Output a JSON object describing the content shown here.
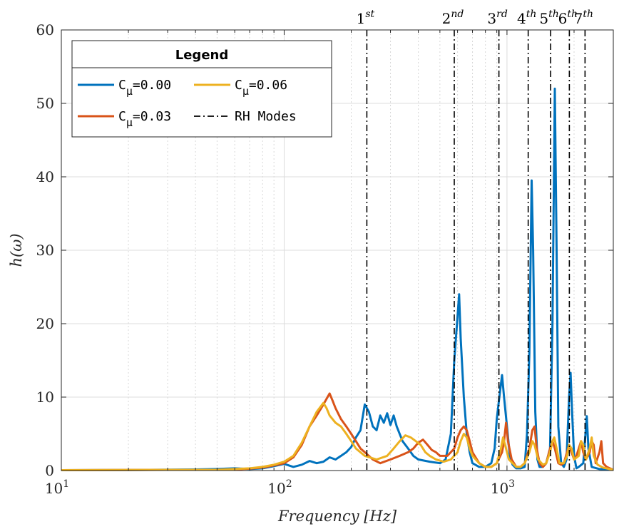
{
  "chart_data": {
    "type": "line",
    "xscale": "log",
    "xlim": [
      10,
      3000
    ],
    "ylim": [
      0,
      60
    ],
    "grid": true,
    "xlabel": "Frequency [Hz]",
    "ylabel": "h(ω)",
    "xticks": [
      {
        "value": 10,
        "base": "10",
        "exp": "1"
      },
      {
        "value": 100,
        "base": "10",
        "exp": "2"
      },
      {
        "value": 1000,
        "base": "10",
        "exp": "3"
      }
    ],
    "yticks": [
      {
        "value": 0,
        "label": "0"
      },
      {
        "value": 10,
        "label": "10"
      },
      {
        "value": 20,
        "label": "20"
      },
      {
        "value": 30,
        "label": "30"
      },
      {
        "value": 40,
        "label": "40"
      },
      {
        "value": 50,
        "label": "50"
      },
      {
        "value": 60,
        "label": "60"
      }
    ],
    "legend": {
      "title": "Legend",
      "position": "top-left",
      "mode_entry": "RH Modes"
    },
    "series": [
      {
        "name": "C_μ=0.00",
        "legend_label": {
          "main": "C",
          "sub": "μ",
          "rest": "=0.00"
        },
        "color": "#0072BD",
        "points": [
          [
            10,
            0.05
          ],
          [
            20,
            0.08
          ],
          [
            40,
            0.15
          ],
          [
            50,
            0.2
          ],
          [
            60,
            0.3
          ],
          [
            70,
            0.2
          ],
          [
            80,
            0.3
          ],
          [
            90,
            0.6
          ],
          [
            100,
            0.9
          ],
          [
            110,
            0.5
          ],
          [
            120,
            0.8
          ],
          [
            130,
            1.3
          ],
          [
            140,
            1.0
          ],
          [
            150,
            1.2
          ],
          [
            160,
            1.8
          ],
          [
            170,
            1.5
          ],
          [
            180,
            2.0
          ],
          [
            190,
            2.5
          ],
          [
            200,
            3.2
          ],
          [
            210,
            4.5
          ],
          [
            220,
            5.5
          ],
          [
            230,
            9.0
          ],
          [
            240,
            8.0
          ],
          [
            250,
            6.0
          ],
          [
            260,
            5.5
          ],
          [
            270,
            7.5
          ],
          [
            280,
            6.5
          ],
          [
            290,
            7.8
          ],
          [
            300,
            6.2
          ],
          [
            310,
            7.5
          ],
          [
            320,
            6.0
          ],
          [
            340,
            4.0
          ],
          [
            360,
            3.0
          ],
          [
            380,
            2.0
          ],
          [
            400,
            1.5
          ],
          [
            450,
            1.2
          ],
          [
            500,
            1.0
          ],
          [
            530,
            1.5
          ],
          [
            560,
            5.0
          ],
          [
            580,
            15.0
          ],
          [
            600,
            21.0
          ],
          [
            610,
            24.0
          ],
          [
            620,
            18.0
          ],
          [
            640,
            10.0
          ],
          [
            660,
            5.0
          ],
          [
            680,
            2.5
          ],
          [
            700,
            1.0
          ],
          [
            750,
            0.5
          ],
          [
            800,
            0.5
          ],
          [
            850,
            1.0
          ],
          [
            880,
            3.0
          ],
          [
            900,
            7.0
          ],
          [
            920,
            9.5
          ],
          [
            950,
            13.0
          ],
          [
            970,
            10.0
          ],
          [
            1000,
            6.0
          ],
          [
            1030,
            2.0
          ],
          [
            1060,
            0.8
          ],
          [
            1100,
            0.3
          ],
          [
            1150,
            0.3
          ],
          [
            1200,
            0.5
          ],
          [
            1230,
            5.0
          ],
          [
            1260,
            16.0
          ],
          [
            1290,
            39.5
          ],
          [
            1310,
            30.0
          ],
          [
            1340,
            8.0
          ],
          [
            1370,
            1.5
          ],
          [
            1400,
            0.5
          ],
          [
            1450,
            0.5
          ],
          [
            1500,
            1.0
          ],
          [
            1560,
            3.0
          ],
          [
            1600,
            20.0
          ],
          [
            1640,
            52.0
          ],
          [
            1670,
            30.0
          ],
          [
            1700,
            6.0
          ],
          [
            1750,
            1.0
          ],
          [
            1800,
            0.5
          ],
          [
            1850,
            1.5
          ],
          [
            1900,
            10.0
          ],
          [
            1930,
            13.3
          ],
          [
            1960,
            8.0
          ],
          [
            2000,
            2.0
          ],
          [
            2050,
            0.3
          ],
          [
            2100,
            0.5
          ],
          [
            2200,
            1.0
          ],
          [
            2250,
            5.0
          ],
          [
            2280,
            7.4
          ],
          [
            2320,
            3.0
          ],
          [
            2400,
            0.5
          ],
          [
            2600,
            0.2
          ],
          [
            3000,
            0.1
          ]
        ]
      },
      {
        "name": "C_μ=0.03",
        "legend_label": {
          "main": "C",
          "sub": "μ",
          "rest": "=0.03"
        },
        "color": "#D95319",
        "points": [
          [
            10,
            0.05
          ],
          [
            30,
            0.1
          ],
          [
            50,
            0.1
          ],
          [
            60,
            0.15
          ],
          [
            70,
            0.25
          ],
          [
            80,
            0.4
          ],
          [
            90,
            0.7
          ],
          [
            100,
            1.0
          ],
          [
            110,
            1.8
          ],
          [
            120,
            3.5
          ],
          [
            130,
            6.0
          ],
          [
            140,
            7.5
          ],
          [
            150,
            9.0
          ],
          [
            160,
            10.5
          ],
          [
            165,
            9.5
          ],
          [
            170,
            8.5
          ],
          [
            180,
            7.0
          ],
          [
            190,
            6.0
          ],
          [
            200,
            5.0
          ],
          [
            210,
            4.0
          ],
          [
            220,
            3.0
          ],
          [
            230,
            2.5
          ],
          [
            250,
            1.5
          ],
          [
            270,
            1.0
          ],
          [
            300,
            1.5
          ],
          [
            330,
            2.0
          ],
          [
            360,
            2.5
          ],
          [
            380,
            3.0
          ],
          [
            400,
            3.8
          ],
          [
            420,
            4.2
          ],
          [
            440,
            3.5
          ],
          [
            460,
            2.8
          ],
          [
            480,
            2.5
          ],
          [
            500,
            2.0
          ],
          [
            540,
            2.0
          ],
          [
            580,
            3.0
          ],
          [
            600,
            4.5
          ],
          [
            620,
            5.5
          ],
          [
            640,
            6.0
          ],
          [
            660,
            5.5
          ],
          [
            680,
            4.0
          ],
          [
            700,
            2.5
          ],
          [
            750,
            1.0
          ],
          [
            800,
            0.5
          ],
          [
            850,
            0.5
          ],
          [
            900,
            1.0
          ],
          [
            950,
            2.5
          ],
          [
            970,
            4.0
          ],
          [
            990,
            6.5
          ],
          [
            1010,
            4.0
          ],
          [
            1050,
            1.5
          ],
          [
            1100,
            0.5
          ],
          [
            1150,
            0.5
          ],
          [
            1200,
            1.0
          ],
          [
            1260,
            3.0
          ],
          [
            1300,
            5.5
          ],
          [
            1330,
            6.0
          ],
          [
            1360,
            3.0
          ],
          [
            1400,
            1.0
          ],
          [
            1450,
            0.5
          ],
          [
            1500,
            1.0
          ],
          [
            1560,
            3.0
          ],
          [
            1600,
            4.0
          ],
          [
            1640,
            3.0
          ],
          [
            1700,
            1.0
          ],
          [
            1750,
            0.8
          ],
          [
            1800,
            1.0
          ],
          [
            1860,
            2.5
          ],
          [
            1900,
            3.5
          ],
          [
            1950,
            2.5
          ],
          [
            2000,
            1.5
          ],
          [
            2050,
            2.0
          ],
          [
            2100,
            3.0
          ],
          [
            2150,
            4.0
          ],
          [
            2200,
            2.5
          ],
          [
            2260,
            1.5
          ],
          [
            2350,
            2.5
          ],
          [
            2400,
            4.0
          ],
          [
            2450,
            3.5
          ],
          [
            2500,
            1.0
          ],
          [
            2600,
            2.5
          ],
          [
            2650,
            4.0
          ],
          [
            2700,
            1.0
          ],
          [
            2800,
            0.5
          ],
          [
            3000,
            0.1
          ]
        ]
      },
      {
        "name": "C_μ=0.06",
        "legend_label": {
          "main": "C",
          "sub": "μ",
          "rest": "=0.06"
        },
        "color": "#EDB120",
        "points": [
          [
            10,
            0.05
          ],
          [
            30,
            0.1
          ],
          [
            50,
            0.1
          ],
          [
            60,
            0.2
          ],
          [
            70,
            0.3
          ],
          [
            80,
            0.5
          ],
          [
            90,
            0.8
          ],
          [
            100,
            1.2
          ],
          [
            110,
            2.0
          ],
          [
            120,
            3.8
          ],
          [
            130,
            6.0
          ],
          [
            140,
            8.0
          ],
          [
            150,
            9.2
          ],
          [
            155,
            8.5
          ],
          [
            160,
            7.5
          ],
          [
            170,
            6.5
          ],
          [
            180,
            6.0
          ],
          [
            190,
            5.0
          ],
          [
            200,
            4.0
          ],
          [
            210,
            3.0
          ],
          [
            230,
            2.0
          ],
          [
            260,
            1.5
          ],
          [
            290,
            2.0
          ],
          [
            310,
            3.0
          ],
          [
            330,
            4.0
          ],
          [
            350,
            4.8
          ],
          [
            370,
            4.5
          ],
          [
            390,
            4.0
          ],
          [
            410,
            3.5
          ],
          [
            430,
            2.5
          ],
          [
            450,
            2.0
          ],
          [
            480,
            1.5
          ],
          [
            520,
            1.2
          ],
          [
            560,
            1.5
          ],
          [
            600,
            2.5
          ],
          [
            620,
            4.0
          ],
          [
            640,
            5.0
          ],
          [
            660,
            4.5
          ],
          [
            680,
            3.0
          ],
          [
            700,
            2.0
          ],
          [
            750,
            1.0
          ],
          [
            800,
            0.5
          ],
          [
            850,
            0.5
          ],
          [
            900,
            1.0
          ],
          [
            940,
            3.0
          ],
          [
            960,
            4.5
          ],
          [
            980,
            3.5
          ],
          [
            1020,
            1.5
          ],
          [
            1100,
            0.5
          ],
          [
            1150,
            0.5
          ],
          [
            1200,
            1.0
          ],
          [
            1260,
            2.5
          ],
          [
            1300,
            4.0
          ],
          [
            1330,
            3.5
          ],
          [
            1380,
            1.5
          ],
          [
            1450,
            0.8
          ],
          [
            1500,
            1.0
          ],
          [
            1560,
            2.5
          ],
          [
            1600,
            4.0
          ],
          [
            1630,
            4.5
          ],
          [
            1670,
            3.0
          ],
          [
            1720,
            1.0
          ],
          [
            1800,
            1.0
          ],
          [
            1860,
            2.0
          ],
          [
            1900,
            3.5
          ],
          [
            1950,
            3.0
          ],
          [
            2000,
            1.5
          ],
          [
            2100,
            2.0
          ],
          [
            2150,
            4.0
          ],
          [
            2200,
            3.5
          ],
          [
            2260,
            1.5
          ],
          [
            2350,
            3.0
          ],
          [
            2400,
            4.5
          ],
          [
            2450,
            2.0
          ],
          [
            2550,
            0.8
          ],
          [
            2700,
            0.4
          ],
          [
            3000,
            0.1
          ]
        ]
      }
    ],
    "modes": [
      {
        "name": "1st",
        "base": "1",
        "sup": "st",
        "x": 235
      },
      {
        "name": "2nd",
        "base": "2",
        "sup": "nd",
        "x": 580
      },
      {
        "name": "3rd",
        "base": "3",
        "sup": "rd",
        "x": 920
      },
      {
        "name": "4th",
        "base": "4",
        "sup": "th",
        "x": 1245
      },
      {
        "name": "5th",
        "base": "5",
        "sup": "th",
        "x": 1570
      },
      {
        "name": "6th",
        "base": "6",
        "sup": "th",
        "x": 1905
      },
      {
        "name": "7th",
        "base": "7",
        "sup": "th",
        "x": 2240
      }
    ]
  }
}
